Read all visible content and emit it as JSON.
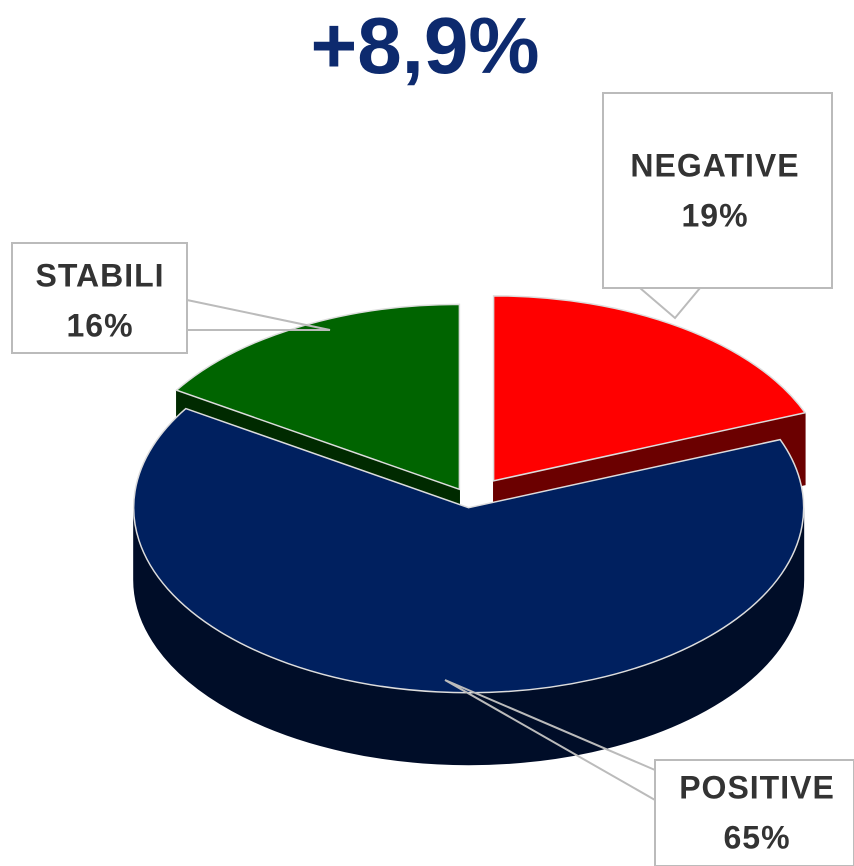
{
  "chart_data": {
    "type": "pie3d",
    "title": "+8,9%",
    "categories": [
      "NEGATIVE",
      "STABILI",
      "POSITIVE"
    ],
    "values": [
      19,
      16,
      65
    ],
    "value_labels": [
      "19%",
      "16%",
      "65%"
    ],
    "colors": [
      "#ff0000",
      "#006400",
      "#00205f"
    ]
  }
}
